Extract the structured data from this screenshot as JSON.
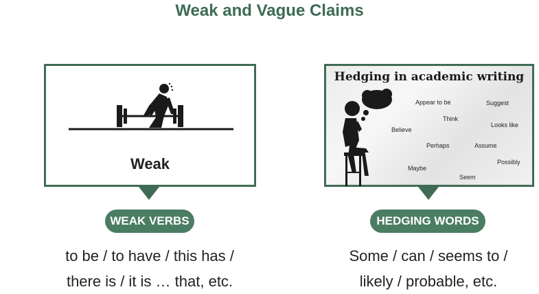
{
  "slide": {
    "title": "Weak and Vague Claims"
  },
  "left": {
    "image_label": "Weak",
    "pill": "WEAK VERBS",
    "desc_line1": "to be / to have / this has /",
    "desc_line2": "there is / it is … that, etc."
  },
  "right": {
    "image_title": "Hedging in academic writing",
    "words": {
      "appear": "Appear to be",
      "suggest": "Suggest",
      "think": "Think",
      "believe": "Believe",
      "looks": "Looks like",
      "perhaps": "Perhaps",
      "assume": "Assume",
      "possibly": "Possibly",
      "maybe": "Maybe",
      "seem": "Seem"
    },
    "pill": "HEDGING WORDS",
    "desc_line1": "Some / can / seems to /",
    "desc_line2": "likely / probable, etc."
  },
  "colors": {
    "accent": "#3f6b55",
    "pill": "#4b7d63",
    "title": "#3d6b55"
  }
}
